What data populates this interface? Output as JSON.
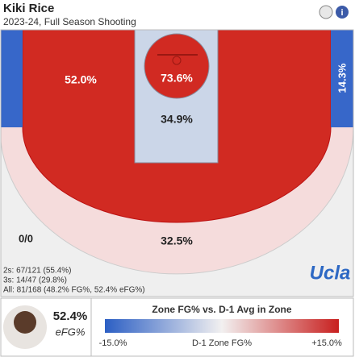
{
  "header": {
    "title": "Kiki Rice",
    "subtitle": "2023-24, Full Season Shooting"
  },
  "zones": {
    "mid_left": "52.0%",
    "rim": "73.6%",
    "paint": "34.9%",
    "corner_right": "14.3%",
    "corner_left": "0/0",
    "above_break": "32.5%"
  },
  "stats": [
    "2s: 67/121 (55.4%)",
    "3s: 14/47 (29.8%)",
    "All: 81/168 (48.2% FG%, 52.4% eFG%)"
  ],
  "logo": "Ucla",
  "summary": {
    "value": "52.4%",
    "label": "eFG%"
  },
  "legend": {
    "title": "Zone FG% vs. D-1 Avg in Zone",
    "low": "-15.0%",
    "mid": "D-1 Zone FG%",
    "high": "+15.0%"
  }
}
